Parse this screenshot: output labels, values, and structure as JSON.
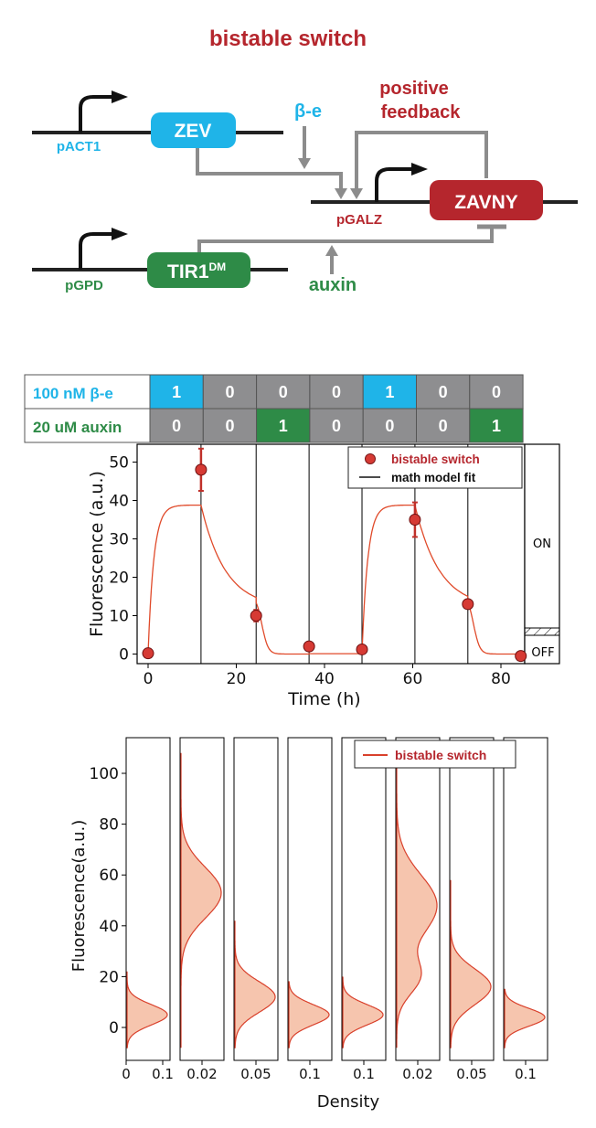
{
  "colors": {
    "red": "#b5262d",
    "blue": "#1fb4e8",
    "green": "#2e8b47",
    "gray": "#8c8c8c",
    "fill": "#f6c5ae",
    "line": "#e04a2a",
    "marker": "#d63a34",
    "cellGray": "#8e8e90"
  },
  "diagram": {
    "title": "bistable switch",
    "genes": [
      {
        "label": "ZEV",
        "promoter": "pACT1"
      },
      {
        "label": "TIR1",
        "superscript": "DM",
        "promoter": "pGPD"
      },
      {
        "label": "ZAVNY",
        "promoter": "pGALZ"
      }
    ],
    "inducers": {
      "beta": "β-e",
      "auxin": "auxin"
    },
    "feedback_label": [
      "positive",
      "feedback"
    ]
  },
  "chart_data": [
    {
      "type": "line",
      "conditions": [
        {
          "label": "100 nM β-e",
          "values": [
            "1",
            "0",
            "0",
            "0",
            "1",
            "0",
            "0"
          ]
        },
        {
          "label": "20 uM auxin",
          "values": [
            "0",
            "0",
            "1",
            "0",
            "0",
            "0",
            "1"
          ]
        }
      ],
      "xlabel": "Time (h)",
      "ylabel": "Fluorescence (a.u.)",
      "xlim": [
        -2,
        86
      ],
      "ylim": [
        -2,
        55
      ],
      "xticks": [
        "0",
        "20",
        "40",
        "60",
        "80"
      ],
      "yticks": [
        "0",
        "10",
        "20",
        "30",
        "40",
        "50"
      ],
      "phase_boundaries": [
        12,
        24.5,
        36.5,
        48.5,
        60.5,
        72.5
      ],
      "series": [
        {
          "name": "bistable switch",
          "kind": "scatter",
          "x": [
            0,
            12,
            24.5,
            36.5,
            48.5,
            60.5,
            72.5,
            84.5
          ],
          "y": [
            0.2,
            48,
            10,
            2,
            1.2,
            35,
            13,
            -0.5
          ],
          "err": [
            0,
            5.5,
            1.5,
            0,
            0,
            4.5,
            0,
            0
          ]
        },
        {
          "name": "math model fit",
          "kind": "line"
        }
      ],
      "side_labels": {
        "on": "ON",
        "off": "OFF"
      }
    },
    {
      "type": "area",
      "legend": "bistable switch",
      "xlabel": "Density",
      "ylabel": "Fluorescence(a.u.)",
      "ylim": [
        -8,
        112
      ],
      "yticks": [
        "0",
        "20",
        "40",
        "60",
        "80",
        "100"
      ],
      "panels": [
        {
          "xtick": [
            "0",
            "0.1"
          ],
          "mix": [
            {
              "w": 1,
              "mu": 5,
              "s": 4
            }
          ],
          "tail": 22
        },
        {
          "xtick": [
            "0.02"
          ],
          "mix": [
            {
              "w": 1,
              "mu": 53,
              "s": 10
            }
          ],
          "tail": 108
        },
        {
          "xtick": [
            "0.05"
          ],
          "mix": [
            {
              "w": 1,
              "mu": 12,
              "s": 6
            }
          ],
          "tail": 42
        },
        {
          "xtick": [
            "0.1"
          ],
          "mix": [
            {
              "w": 1,
              "mu": 5,
              "s": 4
            }
          ],
          "tail": 18
        },
        {
          "xtick": [
            "0.1"
          ],
          "mix": [
            {
              "w": 1,
              "mu": 5,
              "s": 4
            }
          ],
          "tail": 20
        },
        {
          "xtick": [
            "0.02"
          ],
          "mix": [
            {
              "w": 0.35,
              "mu": 20,
              "s": 7
            },
            {
              "w": 0.65,
              "mu": 48,
              "s": 12
            }
          ],
          "tail": 105
        },
        {
          "xtick": [
            "0.05"
          ],
          "mix": [
            {
              "w": 1,
              "mu": 16,
              "s": 7
            }
          ],
          "tail": 58
        },
        {
          "xtick": [
            "0.1"
          ],
          "mix": [
            {
              "w": 1,
              "mu": 4,
              "s": 3.5
            }
          ],
          "tail": 15
        }
      ]
    }
  ]
}
